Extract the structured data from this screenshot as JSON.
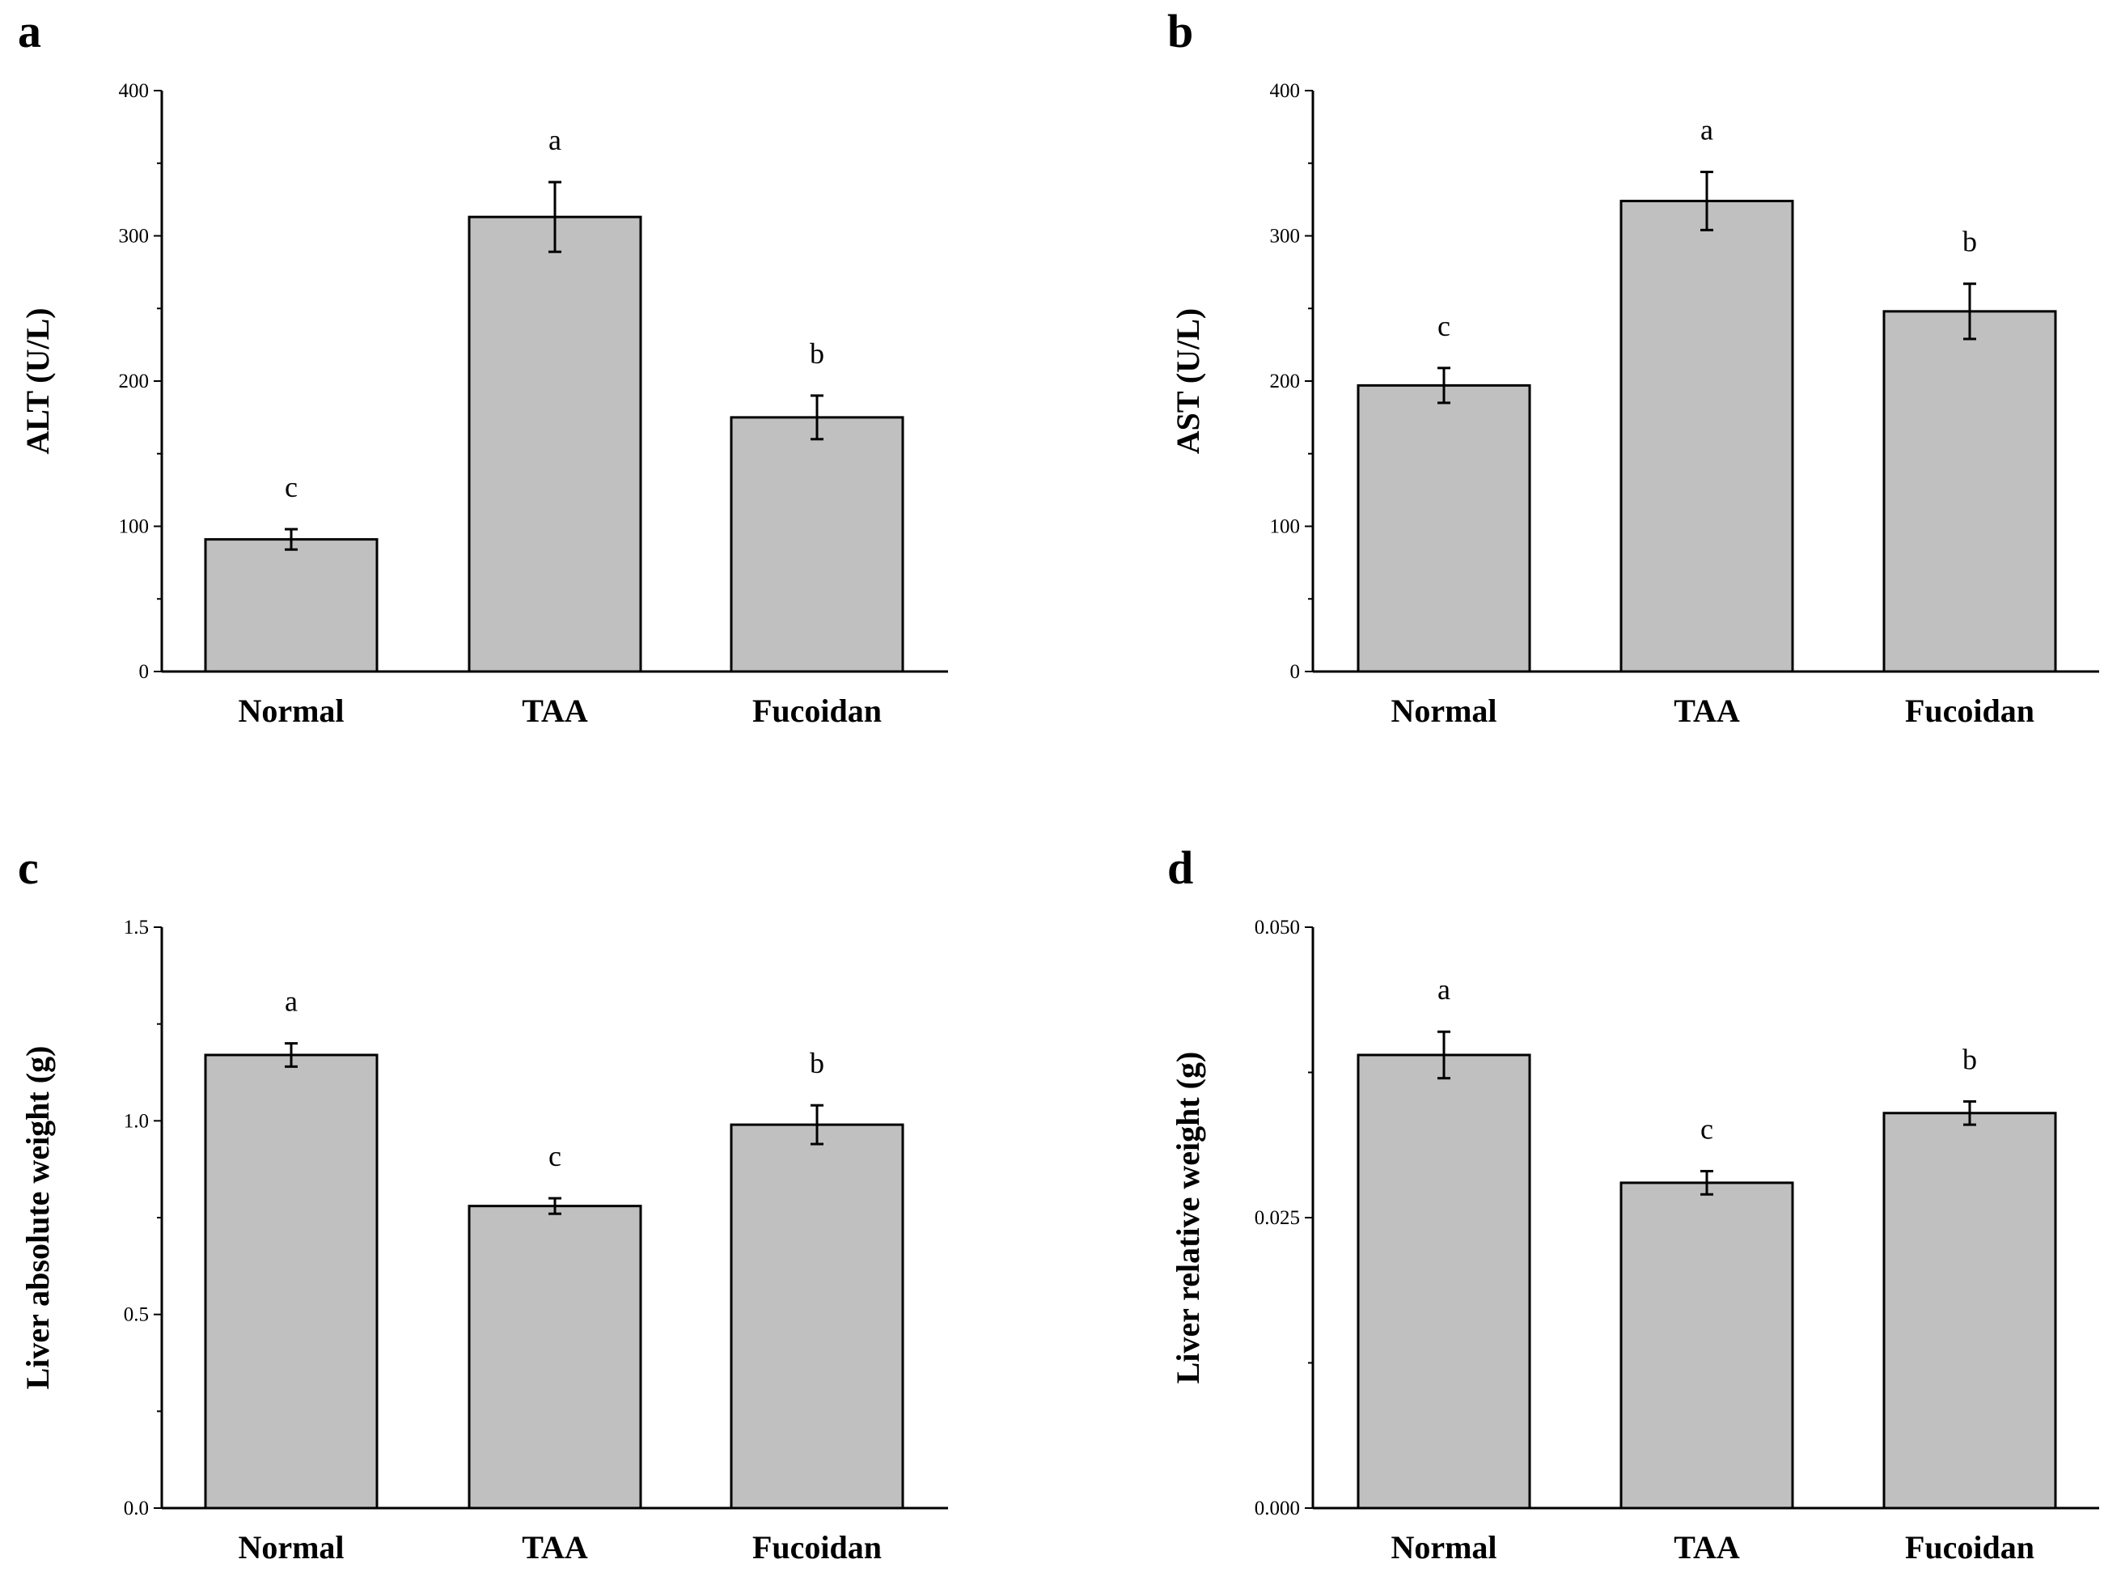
{
  "chart_data": [
    {
      "panel": "a",
      "type": "bar",
      "categories": [
        "Normal",
        "TAA",
        "Fucoidan"
      ],
      "values": [
        91,
        313,
        175
      ],
      "errors": [
        7,
        24,
        15
      ],
      "significance": [
        "c",
        "a",
        "b"
      ],
      "xlabel": "",
      "ylabel": "ALT (U/L)",
      "ylim": [
        0,
        400
      ],
      "yticks": [
        "0",
        "100",
        "200",
        "300",
        "400"
      ],
      "bar_color": "#c0c0c0"
    },
    {
      "panel": "b",
      "type": "bar",
      "categories": [
        "Normal",
        "TAA",
        "Fucoidan"
      ],
      "values": [
        197,
        324,
        248
      ],
      "errors": [
        12,
        20,
        19
      ],
      "significance": [
        "c",
        "a",
        "b"
      ],
      "xlabel": "",
      "ylabel": "AST (U/L)",
      "ylim": [
        0,
        400
      ],
      "yticks": [
        "0",
        "100",
        "200",
        "300",
        "400"
      ],
      "bar_color": "#c0c0c0"
    },
    {
      "panel": "c",
      "type": "bar",
      "categories": [
        "Normal",
        "TAA",
        "Fucoidan"
      ],
      "values": [
        1.17,
        0.78,
        0.99
      ],
      "errors": [
        0.03,
        0.02,
        0.05
      ],
      "significance": [
        "a",
        "c",
        "b"
      ],
      "xlabel": "",
      "ylabel": "Liver absolute weight (g)",
      "ylim": [
        0,
        1.5
      ],
      "yticks": [
        "0.0",
        "0.5",
        "1.0",
        "1.5"
      ],
      "bar_color": "#c0c0c0"
    },
    {
      "panel": "d",
      "type": "bar",
      "categories": [
        "Normal",
        "TAA",
        "Fucoidan"
      ],
      "values": [
        0.039,
        0.028,
        0.034
      ],
      "errors": [
        0.002,
        0.001,
        0.001
      ],
      "significance": [
        "a",
        "c",
        "b"
      ],
      "xlabel": "",
      "ylabel": "Liver relative weight (g)",
      "ylim": [
        0,
        0.05
      ],
      "yticks": [
        "0.000",
        "0.025",
        "0.050"
      ],
      "bar_color": "#c0c0c0"
    }
  ]
}
